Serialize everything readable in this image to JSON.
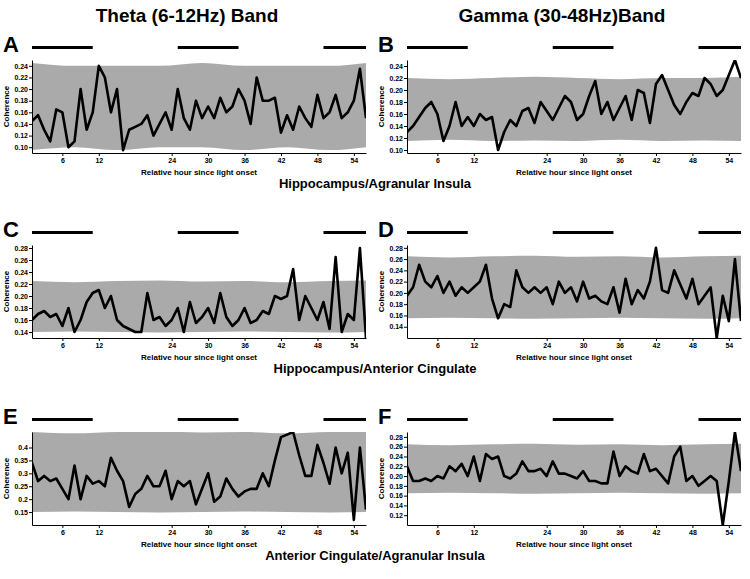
{
  "figure": {
    "column_titles": [
      "Theta (6-12Hz) Band",
      "Gamma (30-48Hz)Band"
    ],
    "row_labels": [
      "Hippocampus/Agranular Insula",
      "Hippocampus/Anterior Cingulate",
      "Anterior Cingulate/Agranular Insula"
    ]
  },
  "chart_data": [
    {
      "type": "line",
      "panel": "A",
      "xlabel": "Relative hour since light onset",
      "ylabel": "Coherence",
      "color": "#000000",
      "xlim": [
        1,
        56
      ],
      "xticks": [
        6,
        12,
        24,
        30,
        36,
        42,
        48,
        54
      ],
      "ylim": [
        0.09,
        0.25
      ],
      "yticks": [
        {
          "value": 0.1,
          "label": "0.10"
        },
        0.12,
        0.14,
        0.16,
        0.18,
        {
          "value": 0.2,
          "label": "0.20"
        },
        0.22,
        0.24
      ],
      "x": [
        1,
        2,
        3,
        4,
        5,
        6,
        7,
        8,
        9,
        10,
        11,
        12,
        13,
        14,
        15,
        16,
        17,
        18,
        19,
        20,
        21,
        22,
        23,
        24,
        25,
        26,
        27,
        28,
        29,
        30,
        31,
        32,
        33,
        34,
        35,
        36,
        37,
        38,
        39,
        40,
        41,
        42,
        43,
        44,
        45,
        46,
        47,
        48,
        49,
        50,
        51,
        52,
        53,
        54,
        55,
        56
      ],
      "values": [
        0.145,
        0.155,
        0.13,
        0.11,
        0.165,
        0.16,
        0.1,
        0.11,
        0.2,
        0.13,
        0.16,
        0.24,
        0.22,
        0.16,
        0.2,
        0.095,
        0.13,
        0.135,
        0.14,
        0.155,
        0.12,
        0.14,
        0.16,
        0.13,
        0.2,
        0.15,
        0.13,
        0.18,
        0.15,
        0.17,
        0.15,
        0.185,
        0.16,
        0.17,
        0.2,
        0.18,
        0.14,
        0.22,
        0.18,
        0.18,
        0.185,
        0.125,
        0.155,
        0.13,
        0.17,
        0.15,
        0.135,
        0.19,
        0.15,
        0.16,
        0.19,
        0.15,
        0.16,
        0.18,
        0.235,
        0.15
      ],
      "band": {
        "color": "#aaaaaa",
        "x": [
          1,
          8,
          15,
          22,
          29,
          36,
          43,
          50,
          56
        ],
        "upper": [
          0.245,
          0.24,
          0.24,
          0.24,
          0.245,
          0.24,
          0.24,
          0.24,
          0.245
        ],
        "lower": [
          0.095,
          0.1,
          0.095,
          0.1,
          0.1,
          0.095,
          0.1,
          0.095,
          0.1
        ]
      },
      "dark_periods": [
        [
          1,
          11
        ],
        [
          25,
          35
        ],
        [
          49,
          56
        ]
      ]
    },
    {
      "type": "line",
      "panel": "B",
      "xlabel": "Relative hour since light onset",
      "ylabel": "Coherence",
      "color": "#000000",
      "xlim": [
        1,
        56
      ],
      "xticks": [
        6,
        12,
        24,
        30,
        36,
        42,
        48,
        54
      ],
      "ylim": [
        0.095,
        0.25
      ],
      "yticks": [
        {
          "value": 0.1,
          "label": "0.10"
        },
        0.12,
        0.14,
        0.16,
        0.18,
        {
          "value": 0.2,
          "label": "0.20"
        },
        0.22,
        0.24
      ],
      "x": [
        1,
        2,
        3,
        4,
        5,
        6,
        7,
        8,
        9,
        10,
        11,
        12,
        13,
        14,
        15,
        16,
        17,
        18,
        19,
        20,
        21,
        22,
        23,
        24,
        25,
        26,
        27,
        28,
        29,
        30,
        31,
        32,
        33,
        34,
        35,
        36,
        37,
        38,
        39,
        40,
        41,
        42,
        43,
        44,
        45,
        46,
        47,
        48,
        49,
        50,
        51,
        52,
        53,
        54,
        55,
        56
      ],
      "values": [
        0.13,
        0.14,
        0.155,
        0.17,
        0.18,
        0.16,
        0.115,
        0.14,
        0.18,
        0.14,
        0.155,
        0.14,
        0.16,
        0.15,
        0.155,
        0.1,
        0.13,
        0.15,
        0.14,
        0.165,
        0.17,
        0.145,
        0.18,
        0.165,
        0.15,
        0.17,
        0.19,
        0.18,
        0.15,
        0.16,
        0.19,
        0.215,
        0.16,
        0.18,
        0.15,
        0.17,
        0.19,
        0.15,
        0.2,
        0.195,
        0.145,
        0.21,
        0.225,
        0.2,
        0.175,
        0.16,
        0.18,
        0.195,
        0.19,
        0.22,
        0.21,
        0.19,
        0.2,
        0.225,
        0.25,
        0.22
      ],
      "band": {
        "color": "#aaaaaa",
        "x": [
          1,
          8,
          15,
          22,
          29,
          36,
          43,
          50,
          56
        ],
        "upper": [
          0.22,
          0.218,
          0.22,
          0.222,
          0.22,
          0.218,
          0.22,
          0.22,
          0.222
        ],
        "lower": [
          0.115,
          0.117,
          0.115,
          0.116,
          0.115,
          0.117,
          0.115,
          0.116,
          0.115
        ]
      },
      "dark_periods": [
        [
          1,
          11
        ],
        [
          25,
          35
        ],
        [
          49,
          56
        ]
      ]
    },
    {
      "type": "line",
      "panel": "C",
      "xlabel": "Relative hour since light onset",
      "ylabel": "Coherence",
      "color": "#000000",
      "xlim": [
        1,
        56
      ],
      "xticks": [
        6,
        12,
        24,
        30,
        36,
        42,
        48,
        54
      ],
      "ylim": [
        0.13,
        0.285
      ],
      "yticks": [
        0.14,
        0.16,
        0.18,
        {
          "value": 0.2,
          "label": "0.20"
        },
        0.22,
        0.24,
        0.26,
        0.28
      ],
      "x": [
        1,
        2,
        3,
        4,
        5,
        6,
        7,
        8,
        9,
        10,
        11,
        12,
        13,
        14,
        15,
        16,
        17,
        18,
        19,
        20,
        21,
        22,
        23,
        24,
        25,
        26,
        27,
        28,
        29,
        30,
        31,
        32,
        33,
        34,
        35,
        36,
        37,
        38,
        39,
        40,
        41,
        42,
        43,
        44,
        45,
        46,
        47,
        48,
        49,
        50,
        51,
        52,
        53,
        54,
        55,
        56
      ],
      "values": [
        0.16,
        0.17,
        0.175,
        0.165,
        0.17,
        0.15,
        0.18,
        0.14,
        0.16,
        0.19,
        0.205,
        0.21,
        0.18,
        0.2,
        0.16,
        0.15,
        0.145,
        0.14,
        0.14,
        0.205,
        0.16,
        0.165,
        0.15,
        0.16,
        0.18,
        0.14,
        0.19,
        0.155,
        0.165,
        0.18,
        0.155,
        0.205,
        0.165,
        0.15,
        0.16,
        0.18,
        0.155,
        0.16,
        0.175,
        0.17,
        0.2,
        0.195,
        0.2,
        0.245,
        0.16,
        0.2,
        0.18,
        0.16,
        0.19,
        0.145,
        0.265,
        0.14,
        0.17,
        0.16,
        0.28,
        0.13
      ],
      "band": {
        "color": "#aaaaaa",
        "x": [
          1,
          8,
          15,
          22,
          29,
          36,
          43,
          50,
          56
        ],
        "upper": [
          0.225,
          0.223,
          0.225,
          0.226,
          0.224,
          0.225,
          0.223,
          0.225,
          0.226
        ],
        "lower": [
          0.14,
          0.141,
          0.14,
          0.139,
          0.14,
          0.141,
          0.14,
          0.139,
          0.14
        ]
      },
      "dark_periods": [
        [
          1,
          11
        ],
        [
          25,
          35
        ],
        [
          49,
          56
        ]
      ]
    },
    {
      "type": "line",
      "panel": "D",
      "xlabel": "Relative hour since light onset",
      "ylabel": "Coherence",
      "color": "#000000",
      "xlim": [
        1,
        56
      ],
      "xticks": [
        6,
        12,
        24,
        30,
        36,
        42,
        48,
        54
      ],
      "ylim": [
        0.12,
        0.285
      ],
      "yticks": [
        0.14,
        0.16,
        0.18,
        {
          "value": 0.2,
          "label": "0.20"
        },
        0.22,
        0.24,
        0.26,
        0.28
      ],
      "x": [
        1,
        2,
        3,
        4,
        5,
        6,
        7,
        8,
        9,
        10,
        11,
        12,
        13,
        14,
        15,
        16,
        17,
        18,
        19,
        20,
        21,
        22,
        23,
        24,
        25,
        26,
        27,
        28,
        29,
        30,
        31,
        32,
        33,
        34,
        35,
        36,
        37,
        38,
        39,
        40,
        41,
        42,
        43,
        44,
        45,
        46,
        47,
        48,
        49,
        50,
        51,
        52,
        53,
        54,
        55,
        56
      ],
      "values": [
        0.195,
        0.21,
        0.25,
        0.22,
        0.21,
        0.23,
        0.2,
        0.22,
        0.195,
        0.21,
        0.2,
        0.21,
        0.22,
        0.25,
        0.19,
        0.155,
        0.18,
        0.175,
        0.24,
        0.21,
        0.2,
        0.21,
        0.2,
        0.21,
        0.18,
        0.22,
        0.2,
        0.21,
        0.185,
        0.22,
        0.19,
        0.195,
        0.185,
        0.18,
        0.21,
        0.165,
        0.225,
        0.18,
        0.205,
        0.19,
        0.22,
        0.28,
        0.205,
        0.2,
        0.24,
        0.215,
        0.19,
        0.225,
        0.18,
        0.195,
        0.21,
        0.12,
        0.195,
        0.15,
        0.26,
        0.15
      ],
      "band": {
        "color": "#aaaaaa",
        "x": [
          1,
          8,
          15,
          22,
          29,
          36,
          43,
          50,
          56
        ],
        "upper": [
          0.265,
          0.263,
          0.265,
          0.266,
          0.264,
          0.265,
          0.263,
          0.265,
          0.266
        ],
        "lower": [
          0.155,
          0.156,
          0.155,
          0.154,
          0.155,
          0.156,
          0.155,
          0.154,
          0.155
        ]
      },
      "dark_periods": [
        [
          1,
          11
        ],
        [
          25,
          35
        ],
        [
          49,
          56
        ]
      ]
    },
    {
      "type": "line",
      "panel": "E",
      "xlabel": "Relative hour since light onset",
      "ylabel": "Coherence",
      "color": "#000000",
      "xlim": [
        1,
        56
      ],
      "xticks": [
        6,
        12,
        24,
        30,
        36,
        42,
        48,
        54
      ],
      "ylim": [
        0.1,
        0.46
      ],
      "yticks": [
        0.15,
        0.2,
        0.25,
        0.3,
        0.35,
        0.4
      ],
      "x": [
        1,
        2,
        3,
        4,
        5,
        6,
        7,
        8,
        9,
        10,
        11,
        12,
        13,
        14,
        15,
        16,
        17,
        18,
        19,
        20,
        21,
        22,
        23,
        24,
        25,
        26,
        27,
        28,
        29,
        30,
        31,
        32,
        33,
        34,
        35,
        36,
        37,
        38,
        39,
        40,
        41,
        42,
        43,
        44,
        45,
        46,
        47,
        48,
        49,
        50,
        51,
        52,
        53,
        54,
        55,
        56
      ],
      "values": [
        0.34,
        0.27,
        0.29,
        0.27,
        0.28,
        0.24,
        0.2,
        0.33,
        0.2,
        0.29,
        0.26,
        0.27,
        0.25,
        0.36,
        0.31,
        0.27,
        0.17,
        0.22,
        0.24,
        0.29,
        0.25,
        0.25,
        0.31,
        0.2,
        0.27,
        0.25,
        0.27,
        0.18,
        0.24,
        0.3,
        0.19,
        0.21,
        0.28,
        0.24,
        0.21,
        0.23,
        0.24,
        0.24,
        0.3,
        0.25,
        0.35,
        0.44,
        0.45,
        0.46,
        0.37,
        0.29,
        0.29,
        0.41,
        0.34,
        0.26,
        0.4,
        0.3,
        0.38,
        0.12,
        0.4,
        0.16
      ],
      "band": {
        "color": "#aaaaaa",
        "x": [
          1,
          8,
          15,
          22,
          29,
          36,
          43,
          50,
          56
        ],
        "upper": [
          0.46,
          0.455,
          0.46,
          0.462,
          0.458,
          0.46,
          0.455,
          0.46,
          0.462
        ],
        "lower": [
          0.15,
          0.152,
          0.15,
          0.148,
          0.15,
          0.152,
          0.15,
          0.148,
          0.15
        ]
      },
      "dark_periods": [
        [
          1,
          11
        ],
        [
          25,
          35
        ],
        [
          49,
          56
        ]
      ]
    },
    {
      "type": "line",
      "panel": "F",
      "xlabel": "Relative hour since light onset",
      "ylabel": "Coherence",
      "color": "#000000",
      "xlim": [
        1,
        56
      ],
      "xticks": [
        6,
        12,
        24,
        30,
        36,
        42,
        48,
        54
      ],
      "ylim": [
        0.1,
        0.29
      ],
      "yticks": [
        0.12,
        0.14,
        0.16,
        0.18,
        {
          "value": 0.2,
          "label": "0.20"
        },
        0.22,
        0.24,
        0.26,
        0.28
      ],
      "x": [
        1,
        2,
        3,
        4,
        5,
        6,
        7,
        8,
        9,
        10,
        11,
        12,
        13,
        14,
        15,
        16,
        17,
        18,
        19,
        20,
        21,
        22,
        23,
        24,
        25,
        26,
        27,
        28,
        29,
        30,
        31,
        32,
        33,
        34,
        35,
        36,
        37,
        38,
        39,
        40,
        41,
        42,
        43,
        44,
        45,
        46,
        47,
        48,
        49,
        50,
        51,
        52,
        53,
        54,
        55,
        56
      ],
      "values": [
        0.22,
        0.19,
        0.19,
        0.195,
        0.19,
        0.2,
        0.195,
        0.22,
        0.21,
        0.225,
        0.2,
        0.24,
        0.19,
        0.245,
        0.235,
        0.24,
        0.2,
        0.195,
        0.205,
        0.23,
        0.21,
        0.21,
        0.215,
        0.2,
        0.23,
        0.205,
        0.205,
        0.2,
        0.195,
        0.21,
        0.19,
        0.19,
        0.185,
        0.185,
        0.25,
        0.2,
        0.22,
        0.21,
        0.205,
        0.245,
        0.21,
        0.215,
        0.2,
        0.185,
        0.24,
        0.26,
        0.19,
        0.2,
        0.18,
        0.19,
        0.2,
        0.19,
        0.1,
        0.19,
        0.29,
        0.21
      ],
      "band": {
        "color": "#aaaaaa",
        "x": [
          1,
          8,
          15,
          22,
          29,
          36,
          43,
          50,
          56
        ],
        "upper": [
          0.265,
          0.263,
          0.265,
          0.266,
          0.264,
          0.265,
          0.263,
          0.265,
          0.266
        ],
        "lower": [
          0.165,
          0.166,
          0.165,
          0.164,
          0.165,
          0.166,
          0.165,
          0.164,
          0.165
        ]
      },
      "dark_periods": [
        [
          1,
          11
        ],
        [
          25,
          35
        ],
        [
          49,
          56
        ]
      ]
    }
  ]
}
